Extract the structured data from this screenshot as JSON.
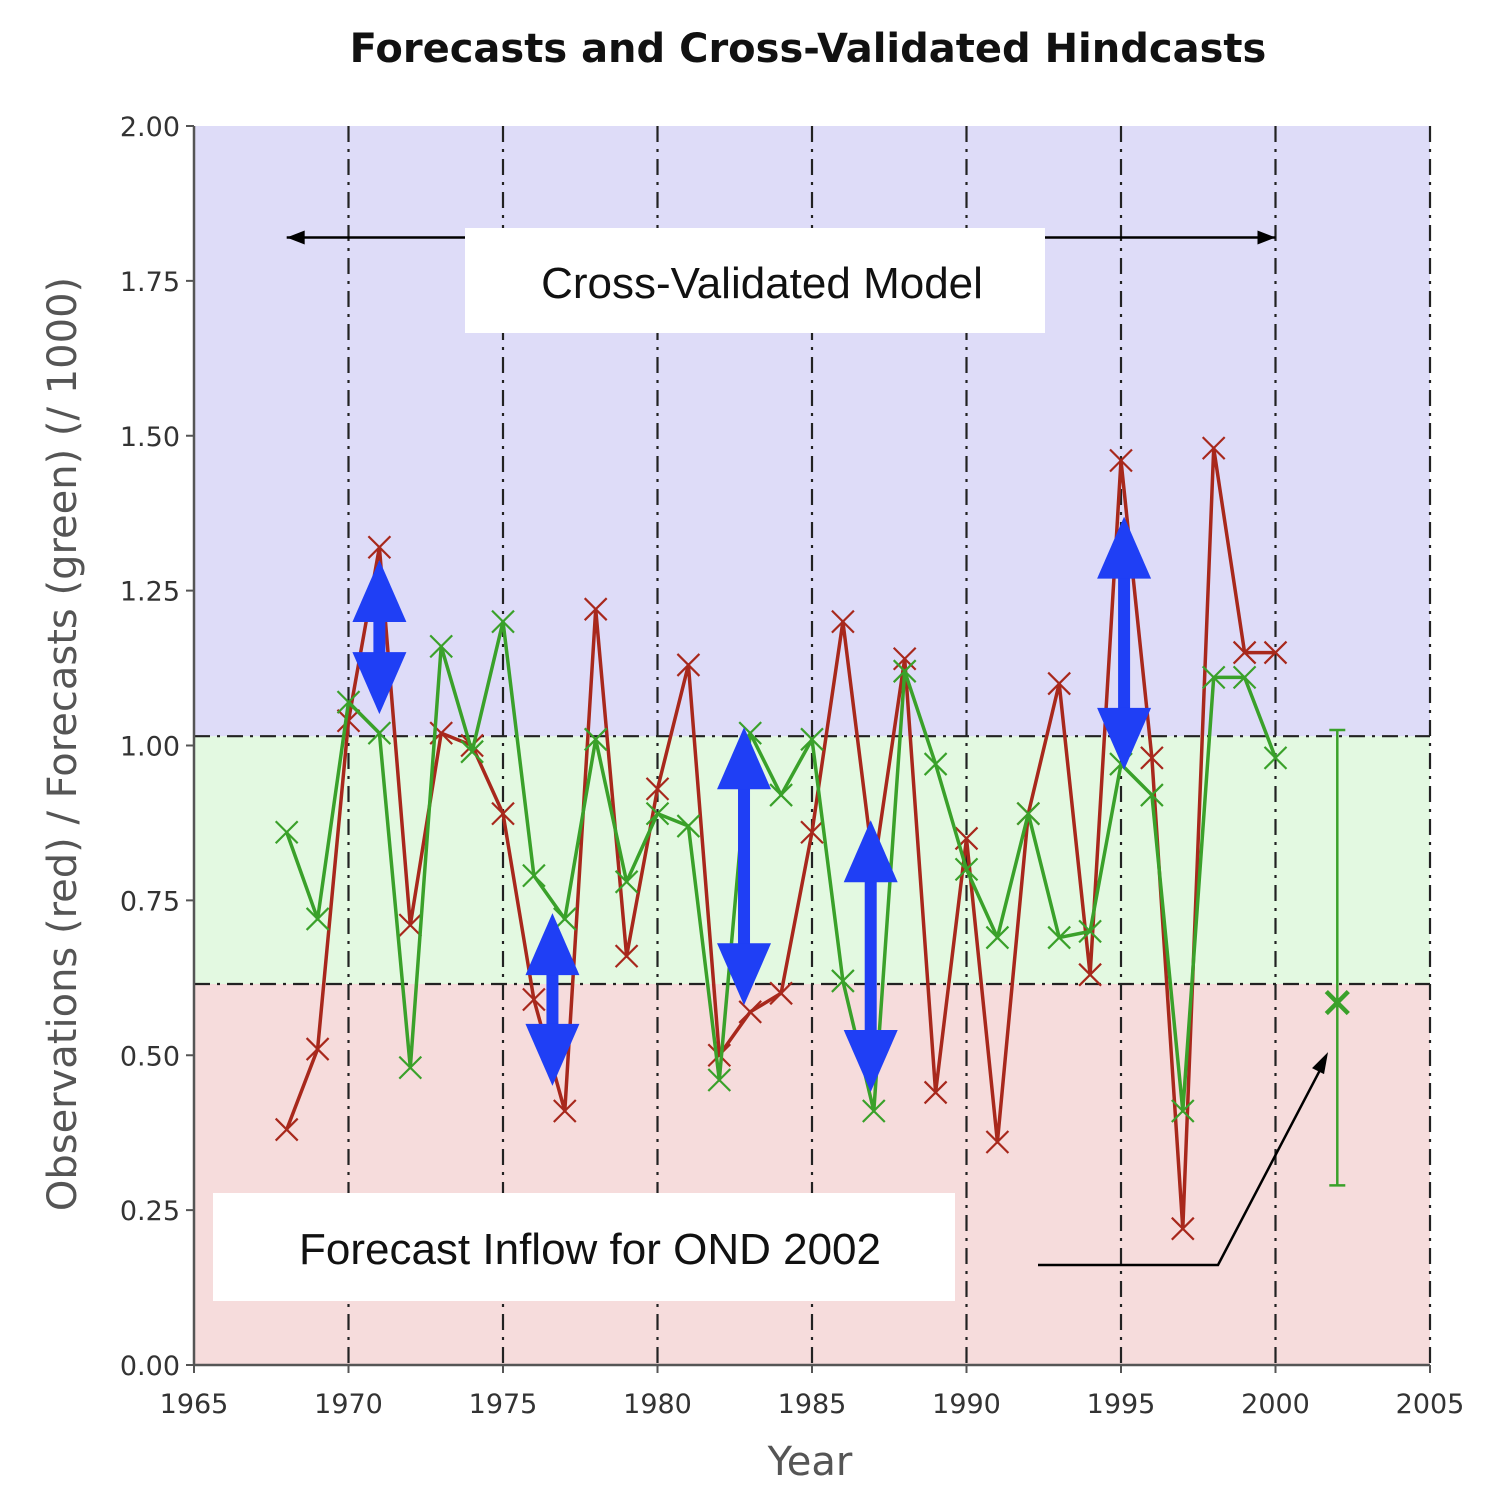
{
  "chart_data": {
    "type": "line",
    "title": "Forecasts and Cross-Validated Hindcasts",
    "xlabel": "Year",
    "ylabel": "Observations (red) / Forecasts (green) (/ 1000)",
    "xlim": [
      1965,
      2005
    ],
    "ylim": [
      0,
      2
    ],
    "xticks": [
      "1965",
      "1970",
      "1975",
      "1980",
      "1985",
      "1990",
      "1995",
      "2000",
      "2005"
    ],
    "yticks": [
      "0.00",
      "0.25",
      "0.50",
      "0.75",
      "1.00",
      "1.25",
      "1.50",
      "1.75",
      "2.00"
    ],
    "bands": [
      {
        "name": "below-normal",
        "from": 0.0,
        "to": 0.615,
        "color": "#f6dcdc"
      },
      {
        "name": "normal",
        "from": 0.615,
        "to": 1.015,
        "color": "#e3f9e1"
      },
      {
        "name": "above-normal",
        "from": 1.015,
        "to": 2.0,
        "color": "#dedcf8"
      }
    ],
    "x": [
      1968,
      1969,
      1970,
      1971,
      1972,
      1973,
      1974,
      1975,
      1976,
      1977,
      1978,
      1979,
      1980,
      1981,
      1982,
      1983,
      1984,
      1985,
      1986,
      1987,
      1988,
      1989,
      1990,
      1991,
      1992,
      1993,
      1994,
      1995,
      1996,
      1997,
      1998,
      1999,
      2000
    ],
    "series": [
      {
        "name": "Observations",
        "color": "#a8281c",
        "values": [
          0.38,
          0.51,
          1.04,
          1.32,
          0.71,
          1.02,
          1.0,
          0.89,
          0.59,
          0.41,
          1.22,
          0.66,
          0.93,
          1.13,
          0.5,
          0.57,
          0.6,
          0.86,
          1.2,
          0.8,
          1.14,
          0.44,
          0.85,
          0.36,
          0.89,
          1.1,
          0.63,
          1.46,
          0.98,
          0.22,
          1.48,
          1.15,
          1.15
        ]
      },
      {
        "name": "Forecasts",
        "color": "#3aa12a",
        "values": [
          0.86,
          0.72,
          1.07,
          1.02,
          0.48,
          1.16,
          0.99,
          1.2,
          0.79,
          0.72,
          1.01,
          0.78,
          0.89,
          0.87,
          0.46,
          1.02,
          0.92,
          1.01,
          0.62,
          0.41,
          1.12,
          0.97,
          0.8,
          0.69,
          0.89,
          0.69,
          0.7,
          0.97,
          0.92,
          0.41,
          1.11,
          1.11,
          0.98
        ]
      }
    ],
    "forecast_2002": {
      "year": 2002,
      "value": 0.585,
      "lower": 0.29,
      "upper": 1.025,
      "color": "#3aa12a"
    },
    "blue_arrows": [
      {
        "year": 1971,
        "from": 1.07,
        "to": 1.28
      },
      {
        "year": 1976.6,
        "from": 0.47,
        "to": 0.71
      },
      {
        "year": 1982.8,
        "from": 0.6,
        "to": 1.01
      },
      {
        "year": 1986.9,
        "from": 0.46,
        "to": 0.86
      },
      {
        "year": 1995.1,
        "from": 0.98,
        "to": 1.35
      }
    ],
    "annotations": {
      "model_label": "Cross-Validated Model",
      "model_span": [
        1968,
        2000
      ],
      "forecast_label": "Forecast Inflow for OND 2002"
    }
  }
}
